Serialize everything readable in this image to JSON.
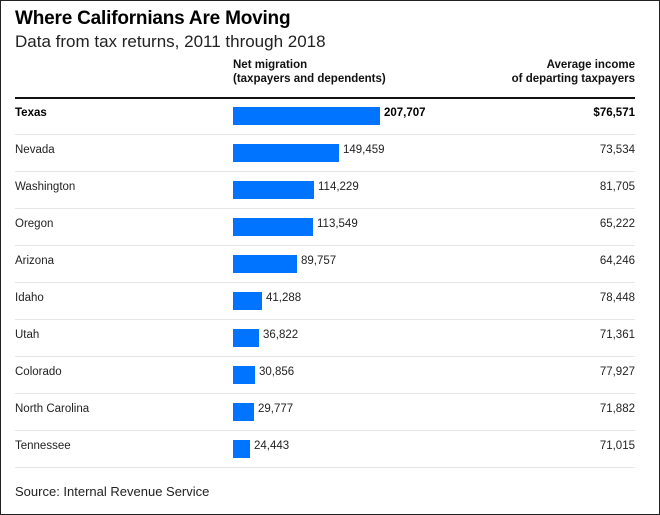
{
  "header": {
    "title": "Where Californians Are Moving",
    "subtitle": "Data from tax returns, 2011 through 2018",
    "col_migration_line1": "Net migration",
    "col_migration_line2": "(taxpayers and dependents)",
    "col_income_line1": "Average income",
    "col_income_line2": "of departing taxpayers"
  },
  "colors": {
    "bar": "#0073ff"
  },
  "chart_data": {
    "type": "bar",
    "orientation": "horizontal",
    "title": "Where Californians Are Moving",
    "subtitle": "Data from tax returns, 2011 through 2018",
    "categories": [
      "Texas",
      "Nevada",
      "Washington",
      "Oregon",
      "Arizona",
      "Idaho",
      "Utah",
      "Colorado",
      "North Carolina",
      "Tennessee"
    ],
    "series": [
      {
        "name": "Net migration (taxpayers and dependents)",
        "values": [
          207707,
          149459,
          114229,
          113549,
          89757,
          41288,
          36822,
          30856,
          29777,
          24443
        ],
        "labels": [
          "207,707",
          "149,459",
          "114,229",
          "113,549",
          "89,757",
          "41,288",
          "36,822",
          "30,856",
          "29,777",
          "24,443"
        ]
      },
      {
        "name": "Average income of departing taxpayers",
        "values": [
          76571,
          73534,
          81705,
          65222,
          64246,
          78448,
          71361,
          77927,
          71882,
          71015
        ],
        "labels": [
          "$76,571",
          "73,534",
          "81,705",
          "65,222",
          "64,246",
          "78,448",
          "71,361",
          "77,927",
          "71,882",
          "71,015"
        ]
      }
    ],
    "xlim": [
      0,
      207707
    ],
    "grid": false,
    "source": "Source: Internal Revenue Service"
  },
  "footer": {
    "source": "Source: Internal Revenue Service"
  }
}
